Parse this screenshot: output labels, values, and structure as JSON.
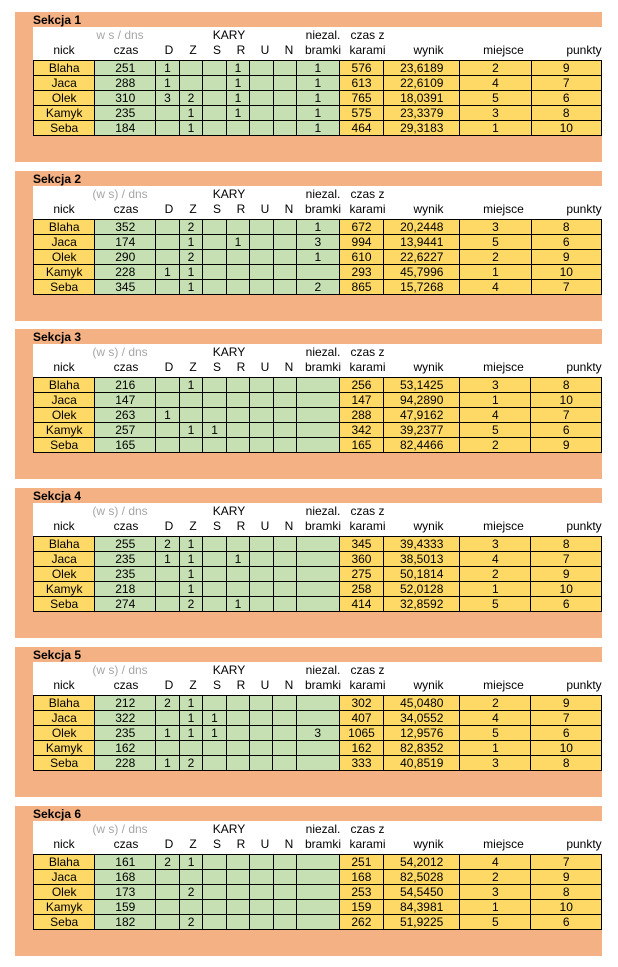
{
  "headers": {
    "ws_dns": [
      "w s / dns",
      "(w s) / dns",
      "(w s) / dns",
      "(w s) / dns",
      "(w s) / dns",
      "(w s) / dns"
    ],
    "kary": "KARY",
    "niezal": "niezal.",
    "bramki": "bramki",
    "czas_z": "czas z",
    "karami": "karami",
    "nick": "nick",
    "czas": "czas",
    "D": "D",
    "Z": "Z",
    "S": "S",
    "R": "R",
    "U": "U",
    "N": "N",
    "wynik": "wynik",
    "miejsce": "miejsce",
    "punkty": "punkty"
  },
  "sections": [
    {
      "title": "Sekcja 1",
      "rows": [
        [
          "Blaha",
          "251",
          "1",
          "",
          "",
          "1",
          "",
          "",
          "1",
          "576",
          "23,6189",
          "2",
          "9"
        ],
        [
          "Jaca",
          "288",
          "1",
          "",
          "",
          "1",
          "",
          "",
          "1",
          "613",
          "22,6109",
          "4",
          "7"
        ],
        [
          "Olek",
          "310",
          "3",
          "2",
          "",
          "1",
          "",
          "",
          "1",
          "765",
          "18,0391",
          "5",
          "6"
        ],
        [
          "Kamyk",
          "235",
          "",
          "1",
          "",
          "1",
          "",
          "",
          "1",
          "575",
          "23,3379",
          "3",
          "8"
        ],
        [
          "Seba",
          "184",
          "",
          "1",
          "",
          "",
          "",
          "",
          "1",
          "464",
          "29,3183",
          "1",
          "10"
        ]
      ]
    },
    {
      "title": "Sekcja 2",
      "rows": [
        [
          "Blaha",
          "352",
          "",
          "2",
          "",
          "",
          "",
          "",
          "1",
          "672",
          "20,2448",
          "3",
          "8"
        ],
        [
          "Jaca",
          "174",
          "",
          "1",
          "",
          "1",
          "",
          "",
          "3",
          "994",
          "13,9441",
          "5",
          "6"
        ],
        [
          "Olek",
          "290",
          "",
          "2",
          "",
          "",
          "",
          "",
          "1",
          "610",
          "22,6227",
          "2",
          "9"
        ],
        [
          "Kamyk",
          "228",
          "1",
          "1",
          "",
          "",
          "",
          "",
          "",
          "293",
          "45,7996",
          "1",
          "10"
        ],
        [
          "Seba",
          "345",
          "",
          "1",
          "",
          "",
          "",
          "",
          "2",
          "865",
          "15,7268",
          "4",
          "7"
        ]
      ]
    },
    {
      "title": "Sekcja 3",
      "rows": [
        [
          "Blaha",
          "216",
          "",
          "1",
          "",
          "",
          "",
          "",
          "",
          "256",
          "53,1425",
          "3",
          "8"
        ],
        [
          "Jaca",
          "147",
          "",
          "",
          "",
          "",
          "",
          "",
          "",
          "147",
          "94,2890",
          "1",
          "10"
        ],
        [
          "Olek",
          "263",
          "1",
          "",
          "",
          "",
          "",
          "",
          "",
          "288",
          "47,9162",
          "4",
          "7"
        ],
        [
          "Kamyk",
          "257",
          "",
          "1",
          "1",
          "",
          "",
          "",
          "",
          "342",
          "39,2377",
          "5",
          "6"
        ],
        [
          "Seba",
          "165",
          "",
          "",
          "",
          "",
          "",
          "",
          "",
          "165",
          "82,4466",
          "2",
          "9"
        ]
      ]
    },
    {
      "title": "Sekcja 4",
      "rows": [
        [
          "Blaha",
          "255",
          "2",
          "1",
          "",
          "",
          "",
          "",
          "",
          "345",
          "39,4333",
          "3",
          "8"
        ],
        [
          "Jaca",
          "235",
          "1",
          "1",
          "",
          "1",
          "",
          "",
          "",
          "360",
          "38,5013",
          "4",
          "7"
        ],
        [
          "Olek",
          "235",
          "",
          "1",
          "",
          "",
          "",
          "",
          "",
          "275",
          "50,1814",
          "2",
          "9"
        ],
        [
          "Kamyk",
          "218",
          "",
          "1",
          "",
          "",
          "",
          "",
          "",
          "258",
          "52,0128",
          "1",
          "10"
        ],
        [
          "Seba",
          "274",
          "",
          "2",
          "",
          "1",
          "",
          "",
          "",
          "414",
          "32,8592",
          "5",
          "6"
        ]
      ]
    },
    {
      "title": "Sekcja 5",
      "rows": [
        [
          "Blaha",
          "212",
          "2",
          "1",
          "",
          "",
          "",
          "",
          "",
          "302",
          "45,0480",
          "2",
          "9"
        ],
        [
          "Jaca",
          "322",
          "",
          "1",
          "1",
          "",
          "",
          "",
          "",
          "407",
          "34,0552",
          "4",
          "7"
        ],
        [
          "Olek",
          "235",
          "1",
          "1",
          "1",
          "",
          "",
          "",
          "3",
          "1065",
          "12,9576",
          "5",
          "6"
        ],
        [
          "Kamyk",
          "162",
          "",
          "",
          "",
          "",
          "",
          "",
          "",
          "162",
          "82,8352",
          "1",
          "10"
        ],
        [
          "Seba",
          "228",
          "1",
          "2",
          "",
          "",
          "",
          "",
          "",
          "333",
          "40,8519",
          "3",
          "8"
        ]
      ]
    },
    {
      "title": "Sekcja 6",
      "rows": [
        [
          "Blaha",
          "161",
          "2",
          "1",
          "",
          "",
          "",
          "",
          "",
          "251",
          "54,2012",
          "4",
          "7"
        ],
        [
          "Jaca",
          "168",
          "",
          "",
          "",
          "",
          "",
          "",
          "",
          "168",
          "82,5028",
          "2",
          "9"
        ],
        [
          "Olek",
          "173",
          "",
          "2",
          "",
          "",
          "",
          "",
          "",
          "253",
          "54,5450",
          "3",
          "8"
        ],
        [
          "Kamyk",
          "159",
          "",
          "",
          "",
          "",
          "",
          "",
          "",
          "159",
          "84,3981",
          "1",
          "10"
        ],
        [
          "Seba",
          "182",
          "",
          "2",
          "",
          "",
          "",
          "",
          "",
          "262",
          "51,9225",
          "5",
          "6"
        ]
      ]
    }
  ]
}
